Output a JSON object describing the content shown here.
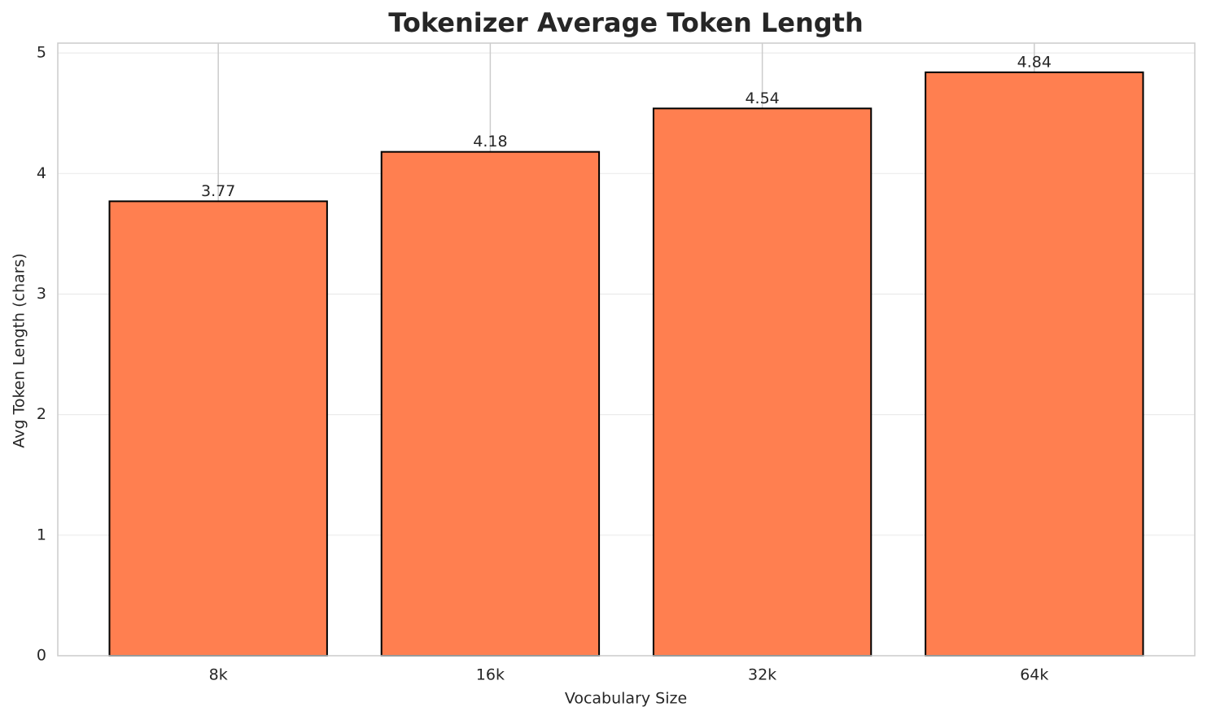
{
  "chart_data": {
    "type": "bar",
    "title": "Tokenizer Average Token Length",
    "x_label": "Vocabulary Size",
    "y_label": "Avg Token Length (chars)",
    "categories": [
      "8k",
      "16k",
      "32k",
      "64k"
    ],
    "values": [
      3.77,
      4.18,
      4.54,
      4.84
    ],
    "color": "#ff7f50",
    "edge_color": "#000000",
    "ylim": [
      0,
      5.082
    ],
    "yticks": [
      0,
      1,
      2,
      3,
      4,
      5
    ],
    "grid": true
  }
}
